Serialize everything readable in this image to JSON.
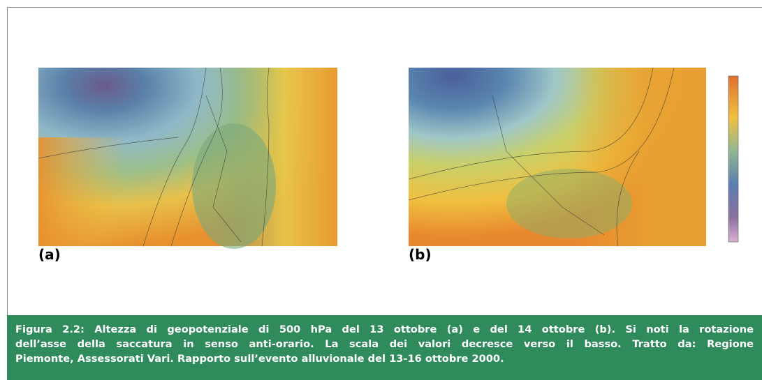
{
  "figure": {
    "panels": [
      {
        "label": "(a)"
      },
      {
        "label": "(b)"
      }
    ],
    "caption": {
      "lines": [
        "Figura 2.2: Altezza di geopotenziale di 500 hPa del 13 ottobre (a) e del 14 ottobre (b). Si noti la rotazione",
        "dell’asse della saccatura in senso anti-orario. La scala dei valori decresce verso il basso. Tratto da: Regione",
        "Piemonte, Assessorati Vari. Rapporto sull’evento alluvionale del 13-16 ottobre 2000."
      ]
    }
  }
}
